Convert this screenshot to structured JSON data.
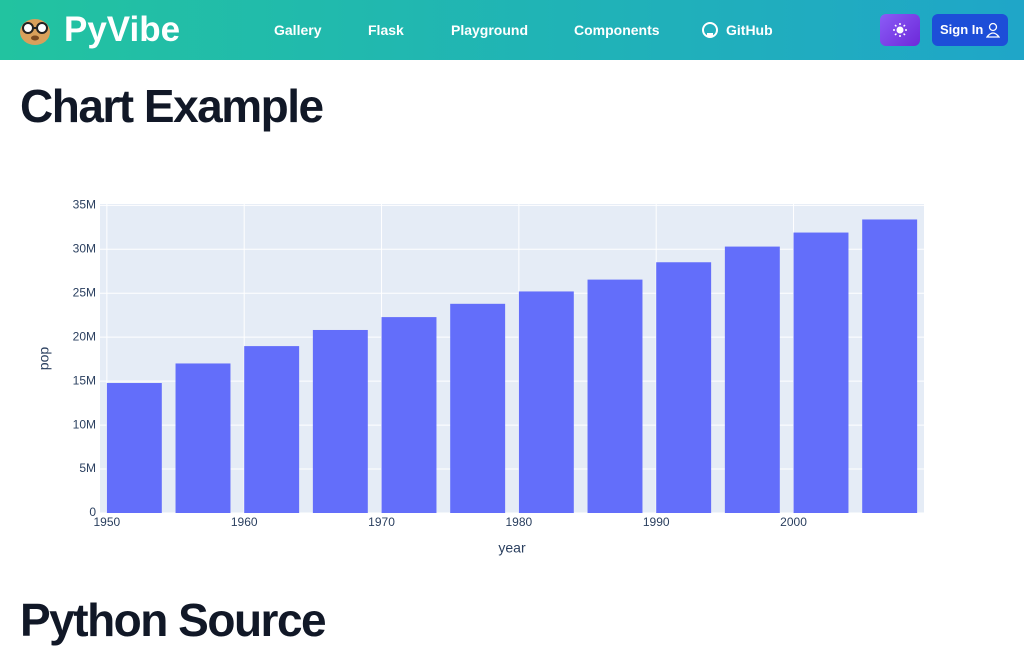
{
  "nav": {
    "brand": "PyVibe",
    "links": [
      "Gallery",
      "Flask",
      "Playground",
      "Components",
      "GitHub"
    ],
    "sign_in": "Sign In"
  },
  "headings": [
    "Chart Example",
    "Python Source"
  ],
  "chart_data": {
    "type": "bar",
    "x_label": "year",
    "y_label": "pop",
    "x": [
      1952,
      1957,
      1962,
      1967,
      1972,
      1977,
      1982,
      1987,
      1992,
      1997,
      2002,
      2007
    ],
    "values": [
      14785584,
      17010154,
      18985849,
      20819767,
      22284500,
      23796400,
      25201900,
      26549700,
      28523502,
      30305843,
      31902268,
      33390141
    ],
    "color": "#636efa",
    "plot_bgcolor": "#e5ecf6",
    "grid": true,
    "xlim": [
      1949.5,
      2009.5
    ],
    "xticks": [
      1950,
      1960,
      1970,
      1980,
      1990,
      2000
    ],
    "ylim": [
      0,
      35150000
    ],
    "yticks": [
      0,
      {
        "value": 5000000,
        "label": "5M"
      },
      {
        "value": 10000000,
        "label": "10M"
      },
      {
        "value": 15000000,
        "label": "15M"
      },
      {
        "value": 20000000,
        "label": "20M"
      },
      {
        "value": 25000000,
        "label": "25M"
      },
      {
        "value": 30000000,
        "label": "30M"
      },
      {
        "value": 35000000,
        "label": "35M"
      }
    ]
  }
}
